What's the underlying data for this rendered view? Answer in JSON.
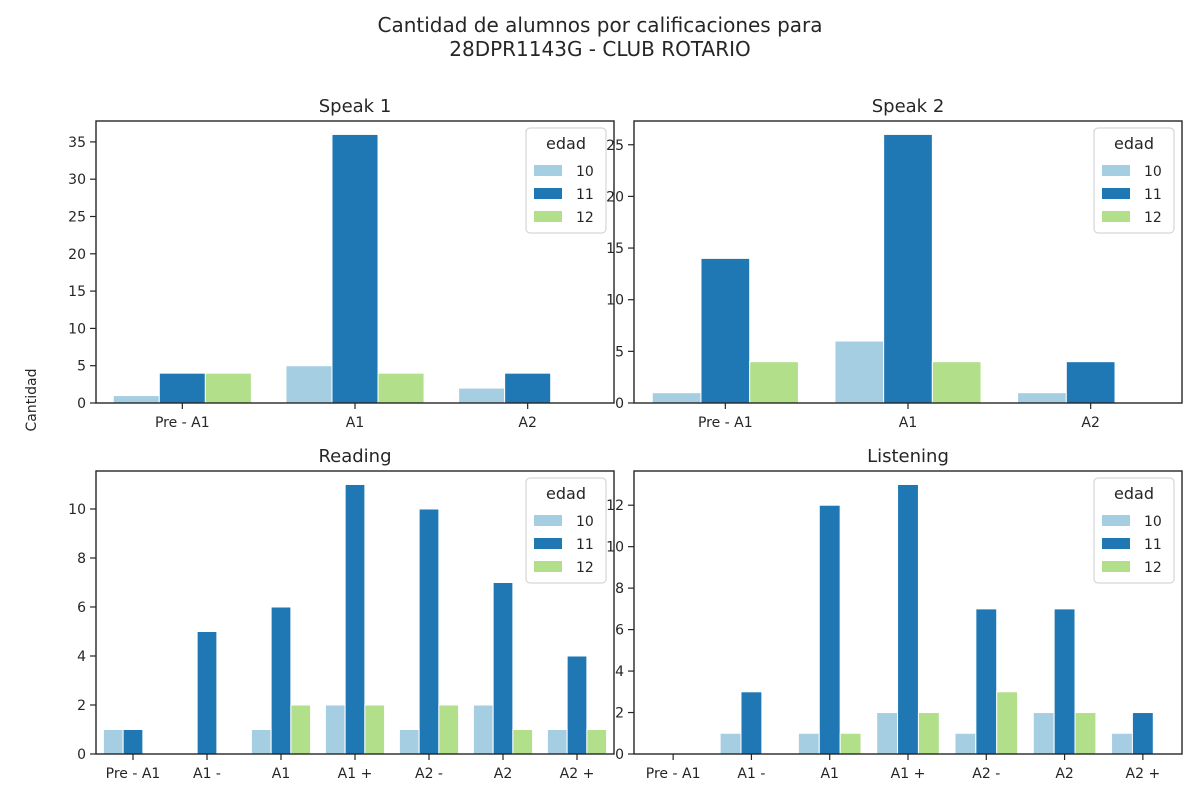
{
  "figure": {
    "title_line1": "Cantidad de alumnos por calificaciones para",
    "title_line2": "28DPR1143G - CLUB ROTARIO",
    "ylabel": "Cantidad",
    "legend_title": "edad",
    "hue_levels": [
      "10",
      "11",
      "12"
    ],
    "colors": {
      "10": "#a6cee3",
      "11": "#1f78b4",
      "12": "#b2df8a"
    }
  },
  "chart_data": [
    {
      "type": "bar",
      "title": "Speak 1",
      "categories": [
        "Pre - A1",
        "A1",
        "A2"
      ],
      "series": [
        {
          "name": "10",
          "values": [
            1,
            5,
            2
          ]
        },
        {
          "name": "11",
          "values": [
            4,
            36,
            4
          ]
        },
        {
          "name": "12",
          "values": [
            4,
            4,
            0
          ]
        }
      ],
      "ylim": [
        0,
        37.8
      ],
      "yticks": [
        0,
        5,
        10,
        15,
        20,
        25,
        30,
        35
      ],
      "legend": "top-right"
    },
    {
      "type": "bar",
      "title": "Speak 2",
      "categories": [
        "Pre - A1",
        "A1",
        "A2"
      ],
      "series": [
        {
          "name": "10",
          "values": [
            1,
            6,
            1
          ]
        },
        {
          "name": "11",
          "values": [
            14,
            26,
            4
          ]
        },
        {
          "name": "12",
          "values": [
            4,
            4,
            0
          ]
        }
      ],
      "ylim": [
        0,
        27.3
      ],
      "yticks": [
        0,
        5,
        10,
        15,
        20,
        25
      ],
      "legend": "top-right"
    },
    {
      "type": "bar",
      "title": "Reading",
      "categories": [
        "Pre - A1",
        "A1 -",
        "A1",
        "A1 +",
        "A2 -",
        "A2",
        "A2 +"
      ],
      "series": [
        {
          "name": "10",
          "values": [
            1,
            0,
            1,
            2,
            1,
            2,
            1
          ]
        },
        {
          "name": "11",
          "values": [
            1,
            5,
            6,
            11,
            10,
            7,
            4
          ]
        },
        {
          "name": "12",
          "values": [
            0,
            0,
            2,
            2,
            2,
            1,
            1
          ]
        }
      ],
      "ylim": [
        0,
        11.55
      ],
      "yticks": [
        0,
        2,
        4,
        6,
        8,
        10
      ],
      "legend": "top-right"
    },
    {
      "type": "bar",
      "title": "Listening",
      "categories": [
        "Pre - A1",
        "A1 -",
        "A1",
        "A1 +",
        "A2 -",
        "A2",
        "A2 +"
      ],
      "series": [
        {
          "name": "10",
          "values": [
            0,
            1,
            1,
            2,
            1,
            2,
            1
          ]
        },
        {
          "name": "11",
          "values": [
            0,
            3,
            12,
            13,
            7,
            7,
            2
          ]
        },
        {
          "name": "12",
          "values": [
            0,
            0,
            1,
            2,
            3,
            2,
            0
          ]
        }
      ],
      "ylim": [
        0,
        13.65
      ],
      "yticks": [
        0,
        2,
        4,
        6,
        8,
        10,
        12
      ],
      "legend": "top-right"
    }
  ]
}
